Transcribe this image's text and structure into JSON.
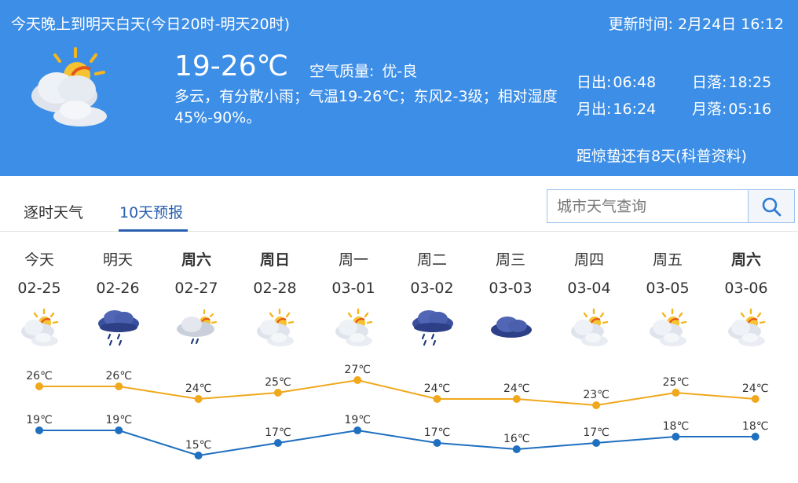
{
  "header": {
    "title": "今天晚上到明天白天(今日20时-明天20时)",
    "update_label": "更新时间:",
    "update_date": "2月24日",
    "update_time": "16:12",
    "temp_range": "19-26℃",
    "air_quality_label": "空气质量:",
    "air_quality_value": "优-良",
    "description": "多云，有分散小雨；气温19-26℃；东风2-3级；相对湿度45%-90%。",
    "sunrise_label": "日出:",
    "sunrise": "06:48",
    "sunset_label": "日落:",
    "sunset": "18:25",
    "moonrise_label": "月出:",
    "moonrise": "16:24",
    "moonset_label": "月落:",
    "moonset": "05:16",
    "solar_term": "距惊蛰还有8天(科普资料)",
    "icon": "partly-cloudy-icon"
  },
  "tabs": [
    {
      "label": "逐时天气",
      "active": false
    },
    {
      "label": "10天预报",
      "active": true
    }
  ],
  "search": {
    "placeholder": "城市天气查询"
  },
  "colors": {
    "header_bg": "#3d8ee6",
    "high_line": "#f0a81c",
    "low_line": "#1e6fbf",
    "tab_active": "#2a5fae"
  },
  "forecast": [
    {
      "name": "今天",
      "bold": false,
      "date": "02-25",
      "icon": "partly-cloudy-icon"
    },
    {
      "name": "明天",
      "bold": false,
      "date": "02-26",
      "icon": "rain-cloud-icon"
    },
    {
      "name": "周六",
      "bold": true,
      "date": "02-27",
      "icon": "shower-icon"
    },
    {
      "name": "周日",
      "bold": true,
      "date": "02-28",
      "icon": "partly-cloudy-icon"
    },
    {
      "name": "周一",
      "bold": false,
      "date": "03-01",
      "icon": "partly-cloudy-icon"
    },
    {
      "name": "周二",
      "bold": false,
      "date": "03-02",
      "icon": "rain-cloud-icon"
    },
    {
      "name": "周三",
      "bold": false,
      "date": "03-03",
      "icon": "dark-cloud-icon"
    },
    {
      "name": "周四",
      "bold": false,
      "date": "03-04",
      "icon": "partly-cloudy-icon"
    },
    {
      "name": "周五",
      "bold": false,
      "date": "03-05",
      "icon": "partly-cloudy-icon"
    },
    {
      "name": "周六",
      "bold": true,
      "date": "03-06",
      "icon": "partly-cloudy-icon"
    }
  ],
  "chart_data": {
    "type": "line",
    "categories": [
      "02-25",
      "02-26",
      "02-27",
      "02-28",
      "03-01",
      "03-02",
      "03-03",
      "03-04",
      "03-05",
      "03-06"
    ],
    "unit": "℃",
    "series": [
      {
        "values": [
          26,
          26,
          24,
          25,
          27,
          24,
          24,
          23,
          25,
          24
        ]
      },
      {
        "values": [
          19,
          19,
          15,
          17,
          19,
          17,
          16,
          17,
          18,
          18
        ]
      }
    ],
    "grid": false
  }
}
